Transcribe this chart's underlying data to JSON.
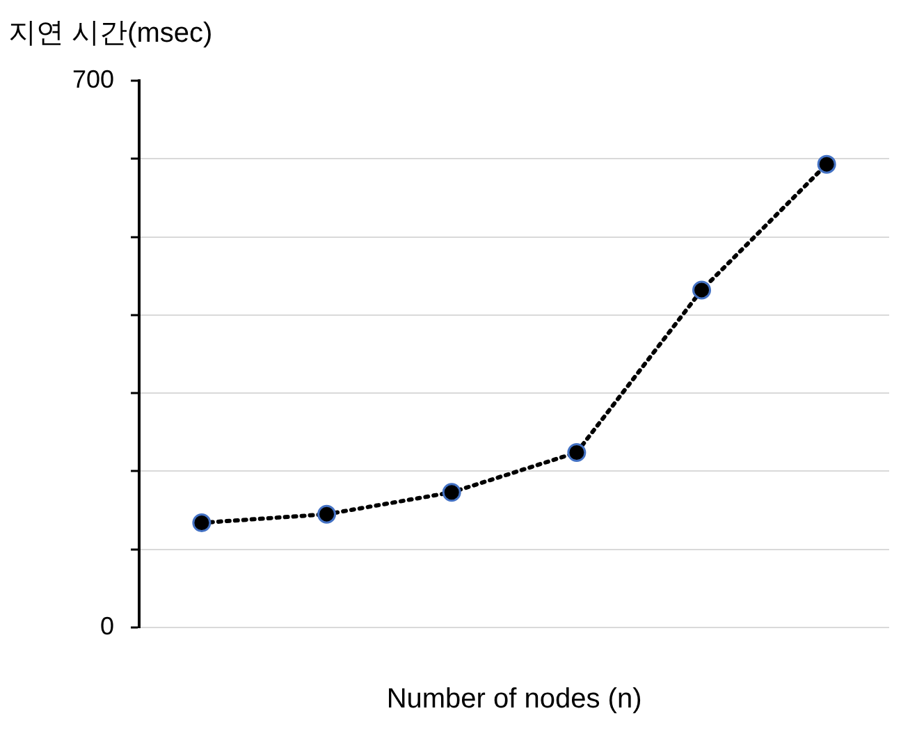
{
  "chart_data": {
    "type": "line",
    "ylabel": "지연 시간(msec)",
    "xlabel": "Number of nodes (n)",
    "categories": [
      null,
      null,
      null,
      null,
      null,
      null
    ],
    "series": [
      {
        "color": "#000000",
        "values": [
          134,
          145,
          173,
          224,
          432,
          593
        ]
      }
    ],
    "ylim": [
      0,
      700
    ],
    "yticks": [
      0,
      {
        "value": 100,
        "label": null
      },
      {
        "value": 200,
        "label": null
      },
      {
        "value": 300,
        "label": null
      },
      {
        "value": 400,
        "label": null
      },
      {
        "value": 500,
        "label": null
      },
      {
        "value": 600,
        "label": null
      },
      700
    ],
    "grid": "y",
    "legend": false,
    "marker": "circle",
    "line_style": "dotted",
    "tick_labels": "y"
  }
}
